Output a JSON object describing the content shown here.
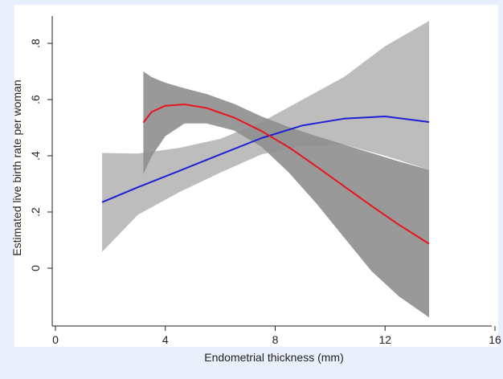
{
  "chart_data": {
    "type": "area",
    "title": "",
    "xlabel": "Endometrial thickness (mm)",
    "ylabel": "Estimated live birth rate per woman",
    "xlim": [
      0,
      16
    ],
    "ylim": [
      -0.2,
      0.9
    ],
    "xticks": [
      0,
      4,
      8,
      12,
      16
    ],
    "yticks": [
      0,
      0.2,
      0.4,
      0.6,
      0.8
    ],
    "xtick_labels": [
      "0",
      "4",
      "8",
      "12",
      "16"
    ],
    "ytick_labels": [
      "0",
      ".2",
      ".4",
      ".6",
      ".8"
    ],
    "grid": false,
    "legend": "none",
    "series": [
      {
        "color": "#1f1fd6",
        "band_color": "#bdbdbd",
        "x": [
          1.7,
          3.0,
          4.5,
          6.0,
          7.5,
          9.0,
          10.5,
          12.0,
          13.6
        ],
        "y": [
          0.235,
          0.288,
          0.346,
          0.405,
          0.463,
          0.508,
          0.532,
          0.54,
          0.52
        ],
        "lower": [
          0.058,
          0.19,
          0.27,
          0.34,
          0.405,
          0.435,
          0.44,
          0.4,
          0.35
        ],
        "upper": [
          0.41,
          0.408,
          0.428,
          0.46,
          0.52,
          0.6,
          0.68,
          0.79,
          0.88
        ]
      },
      {
        "color": "#e8141e",
        "band_color": "#8e8e8e",
        "x": [
          3.2,
          3.5,
          4.0,
          4.7,
          5.5,
          6.5,
          7.5,
          8.5,
          9.5,
          10.5,
          11.5,
          12.5,
          13.6
        ],
        "y": [
          0.518,
          0.556,
          0.578,
          0.583,
          0.57,
          0.536,
          0.488,
          0.43,
          0.362,
          0.292,
          0.222,
          0.155,
          0.087
        ],
        "lower": [
          0.335,
          0.398,
          0.47,
          0.515,
          0.515,
          0.49,
          0.432,
          0.34,
          0.23,
          0.11,
          -0.01,
          -0.1,
          -0.175
        ],
        "upper": [
          0.7,
          0.68,
          0.66,
          0.64,
          0.62,
          0.585,
          0.54,
          0.502,
          0.47,
          0.44,
          0.41,
          0.38,
          0.35
        ]
      }
    ]
  }
}
